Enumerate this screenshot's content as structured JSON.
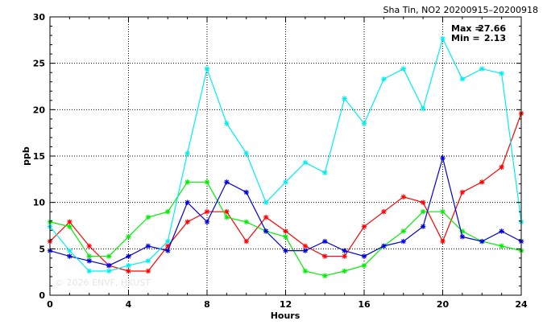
{
  "chart_data": {
    "type": "line",
    "title": "Sha Tin, NO2 20200915–20200918",
    "xlabel": "Hours",
    "ylabel": "ppb",
    "xlim": [
      0,
      24
    ],
    "ylim": [
      0,
      30
    ],
    "xticks": [
      0,
      4,
      8,
      12,
      16,
      20,
      24
    ],
    "yticks": [
      0,
      5,
      10,
      15,
      20,
      25,
      30
    ],
    "grid": true,
    "x": [
      0,
      1,
      2,
      3,
      4,
      5,
      6,
      7,
      8,
      9,
      10,
      11,
      12,
      13,
      14,
      15,
      16,
      17,
      18,
      19,
      20,
      21,
      22,
      23,
      24
    ],
    "series": [
      {
        "color": "#ff0000",
        "values": [
          5.8,
          7.9,
          5.3,
          3.2,
          2.6,
          2.6,
          5.3,
          7.9,
          9.0,
          9.0,
          5.8,
          8.4,
          6.9,
          5.3,
          4.2,
          4.2,
          7.4,
          9.0,
          10.6,
          10.0,
          5.8,
          11.1,
          12.2,
          13.8,
          19.6
        ]
      },
      {
        "color": "#00ee00",
        "values": [
          7.9,
          7.4,
          4.2,
          4.2,
          6.3,
          8.4,
          9.0,
          12.2,
          12.2,
          8.4,
          7.9,
          6.9,
          6.3,
          2.6,
          2.1,
          2.6,
          3.2,
          5.3,
          6.9,
          9.0,
          9.0,
          6.9,
          5.8,
          5.3,
          4.8
        ]
      },
      {
        "color": "#0000dd",
        "values": [
          4.8,
          4.2,
          3.7,
          3.2,
          4.2,
          5.3,
          4.8,
          10.0,
          7.9,
          12.2,
          11.1,
          6.9,
          4.8,
          4.8,
          5.8,
          4.8,
          4.2,
          5.3,
          5.8,
          7.4,
          14.8,
          6.3,
          5.8,
          6.9,
          5.8
        ]
      },
      {
        "color": "#00eeee",
        "values": [
          7.4,
          4.8,
          2.6,
          2.6,
          3.2,
          3.7,
          5.8,
          15.3,
          24.4,
          18.5,
          15.3,
          10.0,
          12.2,
          14.3,
          13.2,
          21.2,
          18.5,
          23.3,
          24.4,
          20.1,
          27.66,
          23.3,
          24.4,
          23.9,
          7.9
        ]
      }
    ],
    "annotations": {
      "max_label": "Max =",
      "max_value": "27.66",
      "min_label": "Min =",
      "min_value": "2.13"
    },
    "watermark": "© 2026  ENVF, HKUST"
  }
}
